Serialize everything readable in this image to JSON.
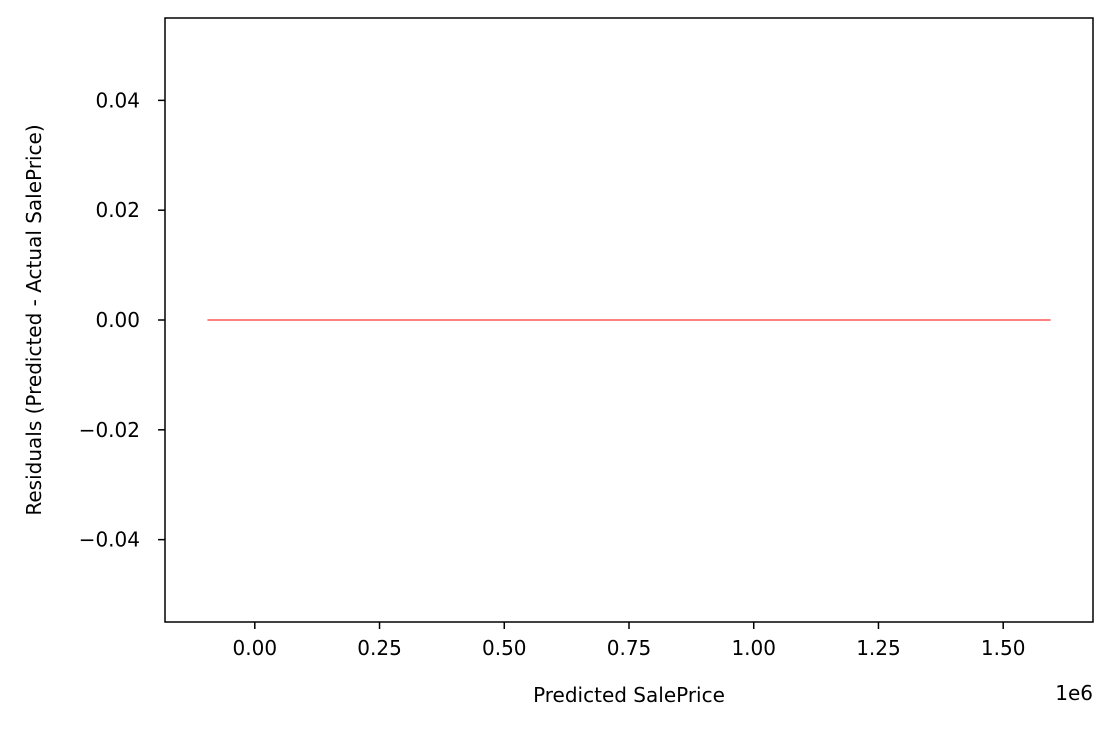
{
  "chart_data": {
    "type": "line",
    "title": "",
    "xlabel": "Predicted SalePrice",
    "ylabel": "Residuals (Predicted - Actual SalePrice)",
    "x_offset_label": "1e6",
    "xlim": [
      -0.18,
      1.68
    ],
    "ylim": [
      -0.055,
      0.055
    ],
    "x_ticks": [
      {
        "value": 0.0,
        "label": "0.00"
      },
      {
        "value": 0.25,
        "label": "0.25"
      },
      {
        "value": 0.5,
        "label": "0.50"
      },
      {
        "value": 0.75,
        "label": "0.75"
      },
      {
        "value": 1.0,
        "label": "1.00"
      },
      {
        "value": 1.25,
        "label": "1.25"
      },
      {
        "value": 1.5,
        "label": "1.50"
      }
    ],
    "y_ticks": [
      {
        "value": 0.04,
        "label": "0.04"
      },
      {
        "value": 0.02,
        "label": "0.02"
      },
      {
        "value": 0.0,
        "label": "0.00"
      },
      {
        "value": -0.02,
        "label": "−0.02"
      },
      {
        "value": -0.04,
        "label": "−0.04"
      }
    ],
    "grid": false,
    "series": [
      {
        "x": [
          -0.095,
          1.595
        ],
        "y": [
          0.0,
          0.0
        ],
        "color": "#ff0000"
      }
    ]
  }
}
